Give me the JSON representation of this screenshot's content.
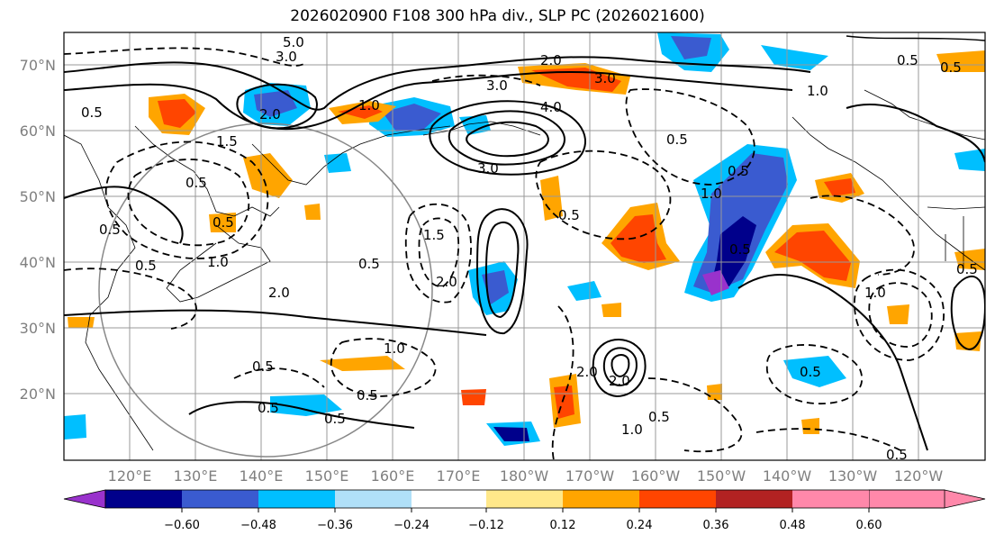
{
  "title": "2026020900 F108 300 hPa div., SLP PC (2026021600)",
  "lat_labels": [
    "70°N",
    "60°N",
    "50°N",
    "40°N",
    "30°N",
    "20°N"
  ],
  "lon_labels": [
    "120°E",
    "130°E",
    "140°E",
    "150°E",
    "160°E",
    "170°E",
    "180°W",
    "170°W",
    "160°W",
    "150°W",
    "140°W",
    "130°W",
    "120°W"
  ],
  "colorbar": {
    "ticks": [
      "−0.60",
      "−0.48",
      "−0.36",
      "−0.24",
      "−0.12",
      "0.12",
      "0.24",
      "0.36",
      "0.48",
      "0.60"
    ],
    "colors": [
      "#9932cc",
      "#00008b",
      "#3a5bd0",
      "#00bfff",
      "#b0e0f8",
      "#ffffff",
      "#ffe88a",
      "#ffa500",
      "#ff4500",
      "#b22222",
      "#ff88aa"
    ]
  },
  "contour_labels": [
    "3.0",
    "5.0",
    "2.0",
    "1.0",
    "3.0",
    "2.0",
    "4.0",
    "3.0",
    "1.5",
    "0.5",
    "0.5",
    "1.0",
    "2.0",
    "0.5",
    "1.5",
    "2.0",
    "0.5",
    "0.5",
    "0.5",
    "0.5",
    "0.5",
    "1.0",
    "2.0",
    "0.5",
    "1.0",
    "0.5",
    "3.0",
    "1.0",
    "0.5",
    "0.5",
    "1.0",
    "0.5",
    "0.5",
    "1.0",
    "0.5",
    "0.5",
    "0.5",
    "0.5",
    "0.5",
    "0.5",
    "2.0"
  ]
}
